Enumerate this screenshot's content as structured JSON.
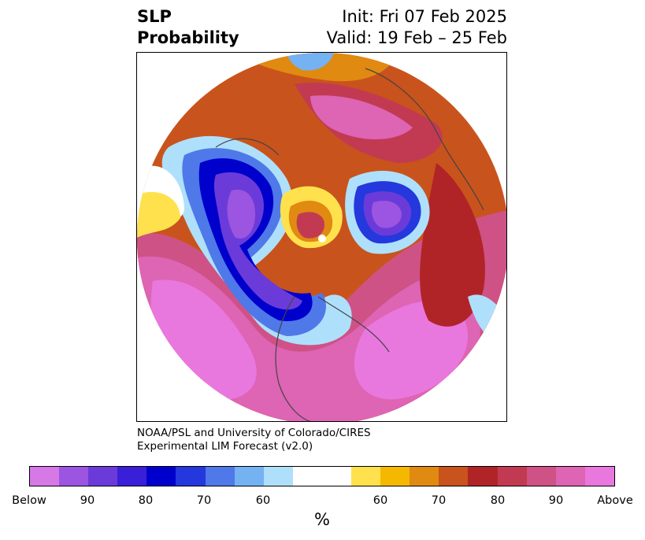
{
  "title": {
    "left_line1": "SLP",
    "left_line2": "Probability",
    "right_line1": "Init: Fri 07 Feb 2025",
    "right_line2": "Valid: 19 Feb – 25 Feb"
  },
  "credit": {
    "line1": "NOAA/PSL and University of Colorado/CIRES",
    "line2": "Experimental LIM Forecast (v2.0)"
  },
  "colorbar": {
    "unit_label": "%",
    "colors": [
      "#d678e6",
      "#9c55e0",
      "#6b3bd9",
      "#3a1fd8",
      "#0000cc",
      "#2438dd",
      "#4f78e8",
      "#74b2f2",
      "#aee0fb",
      "#ffffff",
      "#ffffff",
      "#ffe14d",
      "#f5b800",
      "#e08a12",
      "#c9531c",
      "#b02428",
      "#c23a52",
      "#cf5286",
      "#de64b4",
      "#e878de"
    ],
    "ticks": [
      "Below",
      "90",
      "80",
      "70",
      "60",
      "60",
      "70",
      "80",
      "90",
      "Above"
    ]
  },
  "map": {
    "projection": "polar stereographic (North Pole)",
    "variable": "SLP probability"
  }
}
